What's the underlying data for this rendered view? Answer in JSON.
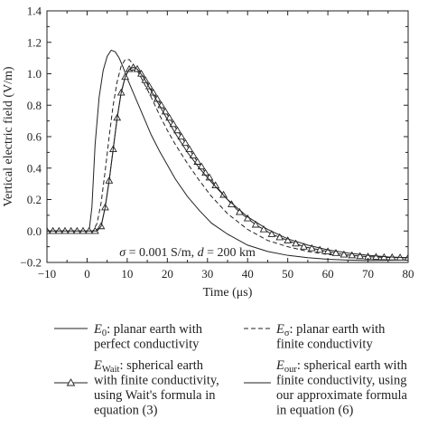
{
  "chart_data": {
    "type": "line",
    "xlabel": "Time (μs)",
    "ylabel": "Vertical electric field (V/m)",
    "xlim": [
      -10,
      80
    ],
    "ylim": [
      -0.2,
      1.4
    ],
    "xticks": [
      -10,
      0,
      10,
      20,
      30,
      40,
      50,
      60,
      70,
      80
    ],
    "yticks": [
      -0.2,
      0.0,
      0.2,
      0.4,
      0.6,
      0.8,
      1.0,
      1.2,
      1.4
    ],
    "xtick_labels": [
      "−10",
      "0",
      "10",
      "20",
      "30",
      "40",
      "50",
      "60",
      "70",
      "80"
    ],
    "ytick_labels": [
      "−0.2",
      "0.0",
      "0.2",
      "0.4",
      "0.6",
      "0.8",
      "1.0",
      "1.2",
      "1.4"
    ],
    "grid": false,
    "annotation": {
      "parts": [
        "σ",
        " = 0.001 S/m, ",
        "d",
        " = 200 km"
      ],
      "x": 25,
      "y": -0.13
    },
    "series": [
      {
        "name": "E0",
        "style": "solid",
        "marker": "none",
        "x": [
          -10,
          0.5,
          1.2,
          2,
          3,
          4,
          5,
          6,
          7,
          8,
          9,
          10,
          12,
          14,
          16,
          18,
          20,
          22,
          25,
          28,
          31,
          35,
          40,
          45,
          50,
          55,
          60,
          65,
          70,
          75,
          80
        ],
        "y": [
          0,
          0,
          0.15,
          0.55,
          0.85,
          1.02,
          1.11,
          1.15,
          1.14,
          1.1,
          1.04,
          0.97,
          0.85,
          0.73,
          0.61,
          0.51,
          0.42,
          0.33,
          0.22,
          0.13,
          0.05,
          -0.02,
          -0.09,
          -0.13,
          -0.155,
          -0.17,
          -0.18,
          -0.185,
          -0.188,
          -0.186,
          -0.183
        ]
      },
      {
        "name": "Eσ",
        "style": "dashed",
        "marker": "none",
        "x": [
          -10,
          0.5,
          1.5,
          2.5,
          3.5,
          4.5,
          5.5,
          6.5,
          7.5,
          8.5,
          9.5,
          10.5,
          11.5,
          12.5,
          14,
          16,
          18,
          20,
          22,
          25,
          28,
          31,
          35,
          40,
          45,
          50,
          55,
          60,
          65,
          70,
          75,
          80
        ],
        "y": [
          0,
          0,
          0,
          0.05,
          0.18,
          0.38,
          0.6,
          0.8,
          0.95,
          1.05,
          1.09,
          1.09,
          1.06,
          1.02,
          0.95,
          0.85,
          0.74,
          0.64,
          0.55,
          0.43,
          0.32,
          0.22,
          0.11,
          0.01,
          -0.06,
          -0.1,
          -0.13,
          -0.15,
          -0.16,
          -0.165,
          -0.168,
          -0.17
        ]
      },
      {
        "name": "EWait",
        "style": "solid",
        "marker": "triangle",
        "x": [
          -10,
          -8.5,
          -7,
          -5.5,
          -4,
          -2.5,
          -1,
          0.5,
          2,
          3.5,
          4.5,
          5.5,
          6.5,
          7.5,
          8.5,
          9.5,
          10.5,
          11.5,
          12.5,
          13.5,
          14.5,
          15.5,
          16.5,
          17.5,
          18.5,
          19.5,
          20.5,
          21.5,
          22.5,
          23.5,
          24.5,
          25.5,
          26.5,
          27.5,
          28.5,
          29.5,
          30.5,
          32,
          34,
          36,
          38,
          40,
          42,
          44,
          46,
          48,
          50,
          52,
          54,
          56,
          58,
          60,
          62,
          64,
          66,
          68,
          70,
          72,
          74,
          76,
          78,
          80
        ],
        "y": [
          0,
          0,
          0,
          0,
          0,
          0,
          0,
          0,
          0,
          0.03,
          0.15,
          0.32,
          0.52,
          0.72,
          0.88,
          0.98,
          1.03,
          1.04,
          1.03,
          1.0,
          0.96,
          0.92,
          0.88,
          0.84,
          0.8,
          0.76,
          0.72,
          0.68,
          0.64,
          0.6,
          0.56,
          0.52,
          0.48,
          0.44,
          0.41,
          0.37,
          0.34,
          0.29,
          0.23,
          0.17,
          0.12,
          0.08,
          0.04,
          0.01,
          -0.02,
          -0.04,
          -0.06,
          -0.08,
          -0.1,
          -0.11,
          -0.12,
          -0.13,
          -0.14,
          -0.15,
          -0.155,
          -0.16,
          -0.163,
          -0.165,
          -0.167,
          -0.168,
          -0.169,
          -0.17
        ]
      },
      {
        "name": "Eour",
        "style": "solid",
        "marker": "none",
        "x": [
          -10,
          0.5,
          2.5,
          3.5,
          4.5,
          5.5,
          6.5,
          7.5,
          8.5,
          9.5,
          10.5,
          11.5,
          12.5,
          14,
          16,
          18,
          20,
          22,
          25,
          28,
          31,
          35,
          40,
          45,
          50,
          55,
          60,
          65,
          70,
          75,
          80
        ],
        "y": [
          0,
          0,
          0,
          0.03,
          0.15,
          0.32,
          0.52,
          0.72,
          0.88,
          0.98,
          1.03,
          1.04,
          1.03,
          0.98,
          0.89,
          0.8,
          0.71,
          0.62,
          0.5,
          0.4,
          0.31,
          0.2,
          0.09,
          0.01,
          -0.05,
          -0.09,
          -0.12,
          -0.14,
          -0.155,
          -0.165,
          -0.17
        ]
      }
    ]
  },
  "legend": [
    {
      "sym": "E",
      "sub": "0",
      "lines": [
        ": planar earth with",
        "perfect conductivity"
      ],
      "style": "solid",
      "marker": "none"
    },
    {
      "sym": "E",
      "sub": "σ",
      "lines": [
        ": planar earth with",
        "finite conductivity"
      ],
      "style": "dashed",
      "marker": "none"
    },
    {
      "sym": "E",
      "sub": "Wait",
      "lines": [
        ": spherical earth",
        "with finite conductivity,",
        "using Wait's formula in",
        "equation (3)"
      ],
      "style": "solid",
      "marker": "triangle"
    },
    {
      "sym": "E",
      "sub": "our",
      "lines": [
        ": spherical earth with",
        "finite conductivity, using",
        "our approximate formula",
        "in equation (6)"
      ],
      "style": "solid",
      "marker": "none"
    }
  ]
}
